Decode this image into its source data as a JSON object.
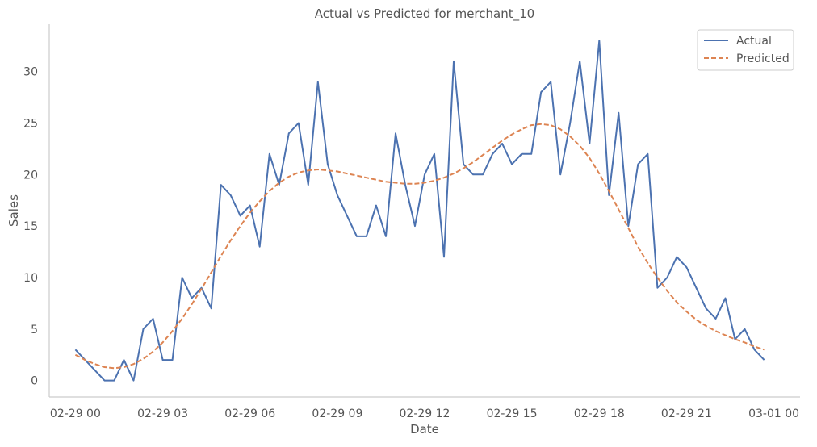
{
  "chart_data": {
    "type": "line",
    "title": "Actual vs Predicted for merchant_10",
    "xlabel": "Date",
    "ylabel": "Sales",
    "x_tick_labels": [
      "02-29 00",
      "02-29 03",
      "02-29 06",
      "02-29 09",
      "02-29 12",
      "02-29 15",
      "02-29 18",
      "02-29 21",
      "03-01 00"
    ],
    "x_ticks_hours": [
      0,
      3,
      6,
      9,
      12,
      15,
      18,
      21,
      24
    ],
    "y_ticks": [
      0,
      5,
      10,
      15,
      20,
      25,
      30
    ],
    "xlim": [
      -0.9,
      24.9
    ],
    "ylim": [
      -1.6,
      34.6
    ],
    "grid": false,
    "legend_position": "top-right",
    "series": [
      {
        "name": "Actual",
        "color": "#4c72b0",
        "style": "solid",
        "x": [
          0,
          0.333,
          0.667,
          1,
          1.333,
          1.667,
          2,
          2.333,
          2.667,
          3,
          3.333,
          3.667,
          4,
          4.333,
          4.667,
          5,
          5.333,
          5.667,
          6,
          6.333,
          6.667,
          7,
          7.333,
          7.667,
          8,
          8.333,
          8.667,
          9,
          9.333,
          9.667,
          10,
          10.333,
          10.667,
          11,
          11.333,
          11.667,
          12,
          12.333,
          12.667,
          13,
          13.333,
          13.667,
          14,
          14.333,
          14.667,
          15,
          15.333,
          15.667,
          16,
          16.333,
          16.667,
          17,
          17.333,
          17.667,
          18,
          18.333,
          18.667,
          19,
          19.333,
          19.667,
          20,
          20.333,
          20.667,
          21,
          21.333,
          21.667,
          22,
          22.333,
          22.667,
          23,
          23.333,
          23.667
        ],
        "y": [
          3,
          2,
          1,
          0,
          0,
          2,
          0,
          5,
          6,
          2,
          2,
          10,
          8,
          9,
          7,
          19,
          18,
          16,
          17,
          13,
          22,
          19,
          24,
          25,
          19,
          29,
          21,
          18,
          16,
          14,
          14,
          17,
          14,
          24,
          19,
          15,
          20,
          22,
          12,
          31,
          21,
          20,
          20,
          22,
          23,
          21,
          22,
          22,
          28,
          29,
          20,
          25,
          31,
          23,
          33,
          18,
          26,
          15,
          21,
          22,
          9,
          10,
          12,
          11,
          9,
          7,
          6,
          8,
          4,
          5,
          3,
          2
        ]
      },
      {
        "name": "Predicted",
        "color": "#dd8452",
        "style": "dashed",
        "x": [
          0,
          0.333,
          0.667,
          1,
          1.333,
          1.667,
          2,
          2.333,
          2.667,
          3,
          3.333,
          3.667,
          4,
          4.333,
          4.667,
          5,
          5.333,
          5.667,
          6,
          6.333,
          6.667,
          7,
          7.333,
          7.667,
          8,
          8.333,
          8.667,
          9,
          9.333,
          9.667,
          10,
          10.333,
          10.667,
          11,
          11.333,
          11.667,
          12,
          12.333,
          12.667,
          13,
          13.333,
          13.667,
          14,
          14.333,
          14.667,
          15,
          15.333,
          15.667,
          16,
          16.333,
          16.667,
          17,
          17.333,
          17.667,
          18,
          18.333,
          18.667,
          19,
          19.333,
          19.667,
          20,
          20.333,
          20.667,
          21,
          21.333,
          21.667,
          22,
          22.333,
          22.667,
          23,
          23.333,
          23.667
        ],
        "y": [
          2.5,
          2.0,
          1.6,
          1.3,
          1.2,
          1.3,
          1.6,
          2.1,
          2.8,
          3.7,
          4.8,
          6.0,
          7.4,
          8.9,
          10.5,
          12.1,
          13.6,
          15.0,
          16.3,
          17.4,
          18.4,
          19.2,
          19.8,
          20.2,
          20.4,
          20.5,
          20.4,
          20.3,
          20.1,
          19.9,
          19.7,
          19.5,
          19.3,
          19.2,
          19.1,
          19.1,
          19.2,
          19.4,
          19.7,
          20.1,
          20.6,
          21.2,
          21.9,
          22.6,
          23.3,
          23.9,
          24.4,
          24.8,
          24.9,
          24.8,
          24.4,
          23.7,
          22.8,
          21.6,
          20.1,
          18.4,
          16.6,
          14.8,
          13.0,
          11.4,
          10.0,
          8.7,
          7.6,
          6.7,
          5.9,
          5.3,
          4.8,
          4.4,
          4.0,
          3.7,
          3.3,
          3.0
        ]
      }
    ]
  }
}
